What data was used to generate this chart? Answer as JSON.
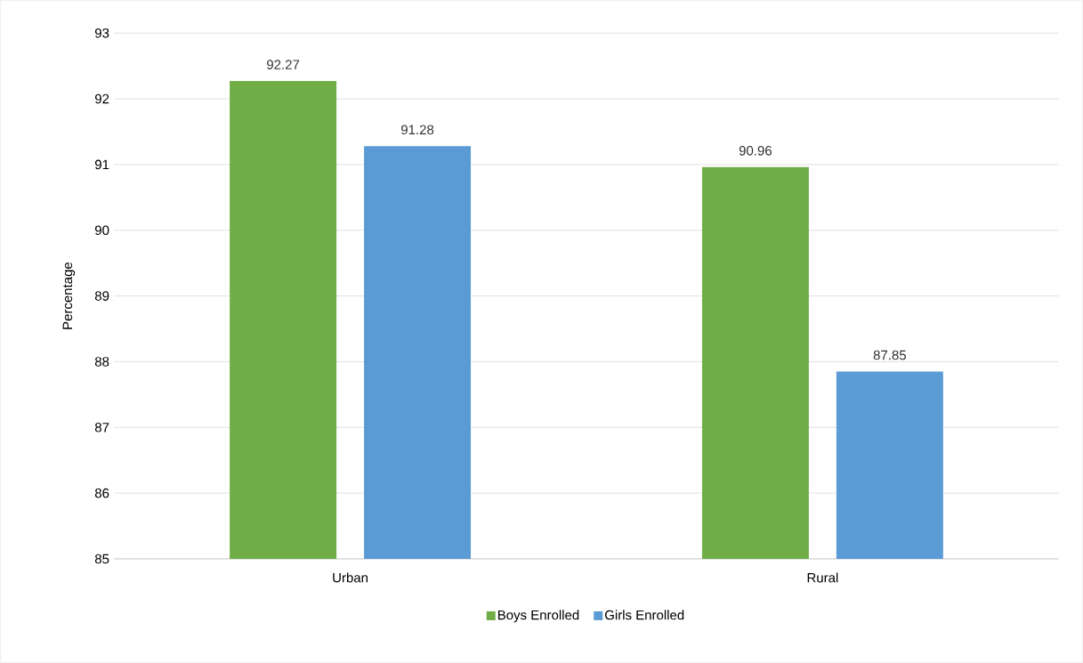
{
  "chart_data": {
    "type": "bar",
    "ylabel": "Percentage",
    "categories": [
      "Urban",
      "Rural"
    ],
    "series": [
      {
        "name": "Boys Enrolled",
        "color": "#70ad47",
        "values": [
          92.27,
          90.96
        ]
      },
      {
        "name": "Girls Enrolled",
        "color": "#5b9bd5",
        "values": [
          91.28,
          87.85
        ]
      }
    ],
    "ylim": [
      85,
      93
    ],
    "yticks": [
      85,
      86,
      87,
      88,
      89,
      90,
      91,
      92,
      93
    ],
    "grid": "y",
    "legend": "bottom",
    "data_labels": true
  }
}
